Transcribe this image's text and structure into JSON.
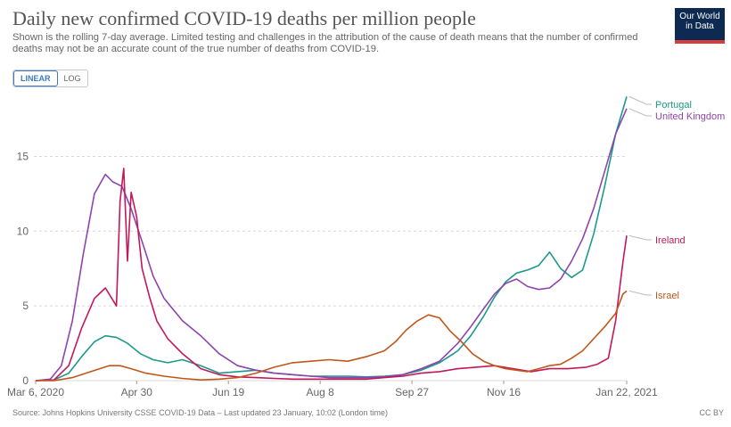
{
  "header": {
    "title": "Daily new confirmed COVID-19 deaths per million people",
    "subtitle": "Shown is the rolling 7-day average. Limited testing and challenges in the attribution of the cause of death means that the number of confirmed deaths may not be an accurate count of the true number of deaths from COVID-19.",
    "logo_line1": "Our World",
    "logo_line2": "in Data"
  },
  "scale_toggle": {
    "linear": "LINEAR",
    "log": "LOG",
    "selected": "LINEAR"
  },
  "footer": {
    "source": "Source: Johns Hopkins University CSSE COVID-19 Data – Last updated 23 January, 10:02 (London time)",
    "license": "CC BY"
  },
  "colors": {
    "portugal": "#1a9a8a",
    "uk": "#8e44ad",
    "ireland": "#c2185b",
    "israel": "#c0571a",
    "grid": "#d8d8d8",
    "axis_text": "#666666"
  },
  "chart_data": {
    "type": "line",
    "title": "Daily new confirmed COVID-19 deaths per million people",
    "xlabel": "",
    "ylabel": "",
    "x_range": [
      "2020-03-06",
      "2021-01-22"
    ],
    "ylim": [
      0,
      19.5
    ],
    "y_ticks": [
      0,
      5,
      10,
      15
    ],
    "x_ticks": [
      {
        "day": 0,
        "label": "Mar 6, 2020"
      },
      {
        "day": 55,
        "label": "Apr 30"
      },
      {
        "day": 105,
        "label": "Jun 19"
      },
      {
        "day": 155,
        "label": "Aug 8"
      },
      {
        "day": 205,
        "label": "Sep 27"
      },
      {
        "day": 255,
        "label": "Nov 16"
      },
      {
        "day": 322,
        "label": "Jan 22, 2021"
      }
    ],
    "grid": true,
    "legend": "right, end of lines",
    "series": [
      {
        "name": "Portugal",
        "key": "portugal",
        "days": [
          0,
          10,
          18,
          25,
          32,
          38,
          44,
          50,
          57,
          64,
          72,
          80,
          90,
          100,
          110,
          120,
          130,
          140,
          150,
          160,
          170,
          180,
          190,
          200,
          210,
          220,
          230,
          237,
          244,
          250,
          256,
          262,
          268,
          274,
          280,
          286,
          292,
          298,
          304,
          310,
          316,
          322
        ],
        "values": [
          0,
          0.05,
          0.5,
          1.6,
          2.6,
          3.0,
          2.9,
          2.5,
          1.8,
          1.4,
          1.2,
          1.4,
          1.0,
          0.5,
          0.6,
          0.7,
          0.5,
          0.4,
          0.3,
          0.3,
          0.3,
          0.25,
          0.3,
          0.4,
          0.7,
          1.2,
          2.0,
          3.0,
          4.3,
          5.6,
          6.6,
          7.2,
          7.4,
          7.7,
          8.6,
          7.5,
          6.9,
          7.4,
          9.8,
          13.0,
          16.5,
          19.0
        ]
      },
      {
        "name": "United Kingdom",
        "key": "uk",
        "days": [
          0,
          8,
          14,
          20,
          26,
          32,
          38,
          42,
          47,
          52,
          58,
          64,
          70,
          80,
          90,
          100,
          110,
          120,
          130,
          140,
          150,
          160,
          170,
          180,
          190,
          200,
          210,
          220,
          230,
          237,
          244,
          250,
          256,
          262,
          268,
          274,
          280,
          286,
          292,
          298,
          304,
          310,
          316,
          322
        ],
        "values": [
          0,
          0.1,
          1.0,
          4.0,
          8.5,
          12.5,
          13.8,
          13.3,
          13.0,
          11.5,
          9.3,
          7.0,
          5.5,
          4.0,
          3.0,
          1.8,
          1.0,
          0.7,
          0.5,
          0.4,
          0.3,
          0.2,
          0.2,
          0.2,
          0.25,
          0.4,
          0.8,
          1.3,
          2.5,
          3.6,
          4.8,
          5.8,
          6.5,
          6.8,
          6.3,
          6.1,
          6.2,
          6.8,
          8.0,
          9.5,
          11.5,
          14.0,
          16.5,
          18.2
        ]
      },
      {
        "name": "Ireland",
        "key": "ireland",
        "days": [
          0,
          10,
          18,
          25,
          32,
          38,
          44,
          46,
          48,
          50,
          52,
          55,
          58,
          62,
          66,
          72,
          80,
          90,
          100,
          110,
          120,
          130,
          140,
          150,
          160,
          170,
          180,
          190,
          200,
          210,
          220,
          230,
          240,
          250,
          260,
          270,
          280,
          290,
          300,
          306,
          312,
          316,
          320,
          322
        ],
        "values": [
          0,
          0.05,
          1.0,
          3.5,
          5.5,
          6.2,
          5.0,
          12.0,
          14.2,
          8.0,
          12.6,
          11.0,
          7.5,
          5.6,
          4.0,
          2.8,
          1.8,
          0.8,
          0.4,
          0.25,
          0.2,
          0.15,
          0.1,
          0.1,
          0.1,
          0.1,
          0.1,
          0.2,
          0.3,
          0.5,
          0.6,
          0.8,
          0.9,
          1.0,
          0.8,
          0.6,
          0.8,
          0.8,
          0.9,
          1.1,
          1.5,
          4.0,
          8.0,
          9.7
        ]
      },
      {
        "name": "Israel",
        "key": "israel",
        "days": [
          0,
          10,
          20,
          30,
          40,
          46,
          52,
          60,
          70,
          80,
          90,
          100,
          110,
          120,
          130,
          140,
          150,
          160,
          170,
          180,
          190,
          196,
          202,
          208,
          214,
          220,
          226,
          232,
          238,
          244,
          250,
          256,
          262,
          268,
          274,
          280,
          286,
          292,
          298,
          304,
          310,
          316,
          320,
          322
        ],
        "values": [
          0,
          0,
          0.2,
          0.6,
          1.0,
          1.0,
          0.8,
          0.5,
          0.3,
          0.15,
          0.05,
          0.1,
          0.2,
          0.5,
          0.9,
          1.2,
          1.3,
          1.4,
          1.3,
          1.6,
          2.0,
          2.6,
          3.4,
          4.0,
          4.4,
          4.2,
          3.3,
          2.6,
          1.8,
          1.3,
          1.0,
          0.8,
          0.7,
          0.6,
          0.8,
          1.0,
          1.1,
          1.5,
          2.0,
          2.8,
          3.6,
          4.5,
          5.8,
          6.0
        ]
      }
    ]
  }
}
